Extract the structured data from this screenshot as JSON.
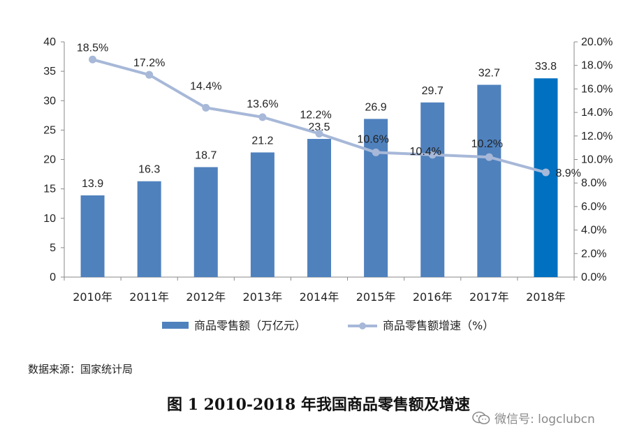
{
  "chart_data": {
    "type": "bar+line",
    "categories": [
      "2010年",
      "2011年",
      "2012年",
      "2013年",
      "2014年",
      "2015年",
      "2016年",
      "2017年",
      "2018年"
    ],
    "series": [
      {
        "name": "商品零售额（万亿元）",
        "type": "bar",
        "axis": "left",
        "values": [
          13.9,
          16.3,
          18.7,
          21.2,
          23.5,
          26.9,
          29.7,
          32.7,
          33.8
        ],
        "labels": [
          "13.9",
          "16.3",
          "18.7",
          "21.2",
          "23.5",
          "26.9",
          "29.7",
          "32.7",
          "33.8"
        ],
        "color": "#4f81bd",
        "highlight_color": "#0070c0"
      },
      {
        "name": "商品零售额增速（%）",
        "type": "line",
        "axis": "right",
        "values": [
          18.5,
          17.2,
          14.4,
          13.6,
          12.2,
          10.6,
          10.4,
          10.2,
          8.9
        ],
        "labels": [
          "18.5%",
          "17.2%",
          "14.4%",
          "13.6%",
          "12.2%",
          "10.6%",
          "10.4%",
          "10.2%",
          "8.9%"
        ],
        "color": "#a7b8d8"
      }
    ],
    "y_left": {
      "min": 0,
      "max": 40,
      "ticks": [
        "0",
        "5",
        "10",
        "15",
        "20",
        "25",
        "30",
        "35",
        "40"
      ]
    },
    "y_right": {
      "min": 0,
      "max": 20,
      "ticks": [
        "0.0%",
        "2.0%",
        "4.0%",
        "6.0%",
        "8.0%",
        "10.0%",
        "12.0%",
        "14.0%",
        "16.0%",
        "18.0%",
        "20.0%"
      ]
    },
    "grid": false,
    "legend": "bottom",
    "source": "数据来源：国家统计局",
    "title": "图 1 2010-2018 年我国商品零售额及增速"
  },
  "watermark": {
    "text": "微信号: logclubcn",
    "icon": "wechat-icon"
  }
}
